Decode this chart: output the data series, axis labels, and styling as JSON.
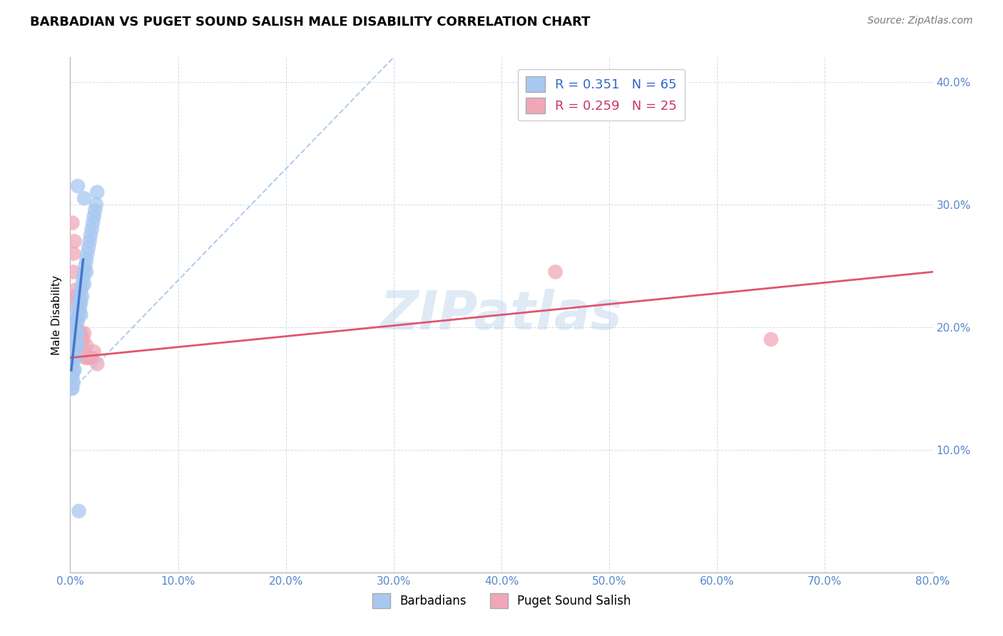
{
  "title": "BARBADIAN VS PUGET SOUND SALISH MALE DISABILITY CORRELATION CHART",
  "source": "Source: ZipAtlas.com",
  "ylabel": "Male Disability",
  "xlim": [
    0.0,
    0.8
  ],
  "ylim": [
    0.0,
    0.42
  ],
  "xticks": [
    0.0,
    0.1,
    0.2,
    0.3,
    0.4,
    0.5,
    0.6,
    0.7,
    0.8
  ],
  "yticks": [
    0.0,
    0.1,
    0.2,
    0.3,
    0.4
  ],
  "xtick_labels": [
    "0.0%",
    "10.0%",
    "20.0%",
    "30.0%",
    "40.0%",
    "50.0%",
    "60.0%",
    "70.0%",
    "80.0%"
  ],
  "ytick_labels": [
    "",
    "10.0%",
    "20.0%",
    "30.0%",
    "40.0%"
  ],
  "legend_labels": [
    "Barbadians",
    "Puget Sound Salish"
  ],
  "blue_R": 0.351,
  "blue_N": 65,
  "pink_R": 0.259,
  "pink_N": 25,
  "blue_color": "#a8c8f0",
  "pink_color": "#f0a8b8",
  "blue_line_color": "#4477cc",
  "pink_line_color": "#e05570",
  "watermark": "ZIPatlas",
  "blue_scatter_x": [
    0.001,
    0.001,
    0.001,
    0.001,
    0.001,
    0.002,
    0.002,
    0.002,
    0.002,
    0.002,
    0.002,
    0.002,
    0.003,
    0.003,
    0.003,
    0.003,
    0.003,
    0.003,
    0.004,
    0.004,
    0.004,
    0.004,
    0.004,
    0.004,
    0.005,
    0.005,
    0.005,
    0.005,
    0.005,
    0.006,
    0.006,
    0.006,
    0.006,
    0.007,
    0.007,
    0.007,
    0.007,
    0.008,
    0.008,
    0.009,
    0.009,
    0.01,
    0.01,
    0.01,
    0.011,
    0.011,
    0.012,
    0.013,
    0.013,
    0.014,
    0.015,
    0.015,
    0.016,
    0.017,
    0.018,
    0.019,
    0.02,
    0.021,
    0.022,
    0.023,
    0.024,
    0.025,
    0.013,
    0.007,
    0.008
  ],
  "blue_scatter_y": [
    0.185,
    0.175,
    0.17,
    0.16,
    0.15,
    0.19,
    0.185,
    0.18,
    0.175,
    0.17,
    0.16,
    0.15,
    0.195,
    0.19,
    0.185,
    0.175,
    0.165,
    0.155,
    0.2,
    0.195,
    0.19,
    0.185,
    0.175,
    0.165,
    0.205,
    0.2,
    0.195,
    0.185,
    0.175,
    0.21,
    0.205,
    0.195,
    0.185,
    0.215,
    0.205,
    0.195,
    0.185,
    0.22,
    0.21,
    0.225,
    0.215,
    0.23,
    0.22,
    0.21,
    0.235,
    0.225,
    0.24,
    0.245,
    0.235,
    0.25,
    0.255,
    0.245,
    0.26,
    0.265,
    0.27,
    0.275,
    0.28,
    0.285,
    0.29,
    0.295,
    0.3,
    0.31,
    0.305,
    0.315,
    0.05
  ],
  "pink_scatter_x": [
    0.002,
    0.003,
    0.003,
    0.004,
    0.004,
    0.005,
    0.005,
    0.006,
    0.006,
    0.007,
    0.008,
    0.009,
    0.01,
    0.011,
    0.012,
    0.013,
    0.014,
    0.015,
    0.016,
    0.018,
    0.02,
    0.022,
    0.025,
    0.45,
    0.65
  ],
  "pink_scatter_y": [
    0.285,
    0.26,
    0.245,
    0.27,
    0.23,
    0.225,
    0.205,
    0.22,
    0.2,
    0.22,
    0.185,
    0.195,
    0.195,
    0.185,
    0.19,
    0.195,
    0.175,
    0.185,
    0.175,
    0.175,
    0.175,
    0.18,
    0.17,
    0.245,
    0.19
  ],
  "blue_solid_line": [
    [
      0.001,
      0.012
    ],
    [
      0.165,
      0.255
    ]
  ],
  "blue_dashed_line": [
    [
      0.001,
      0.3
    ],
    [
      0.148,
      0.42
    ]
  ],
  "pink_solid_line": [
    [
      0.0,
      0.8
    ],
    [
      0.175,
      0.245
    ]
  ]
}
